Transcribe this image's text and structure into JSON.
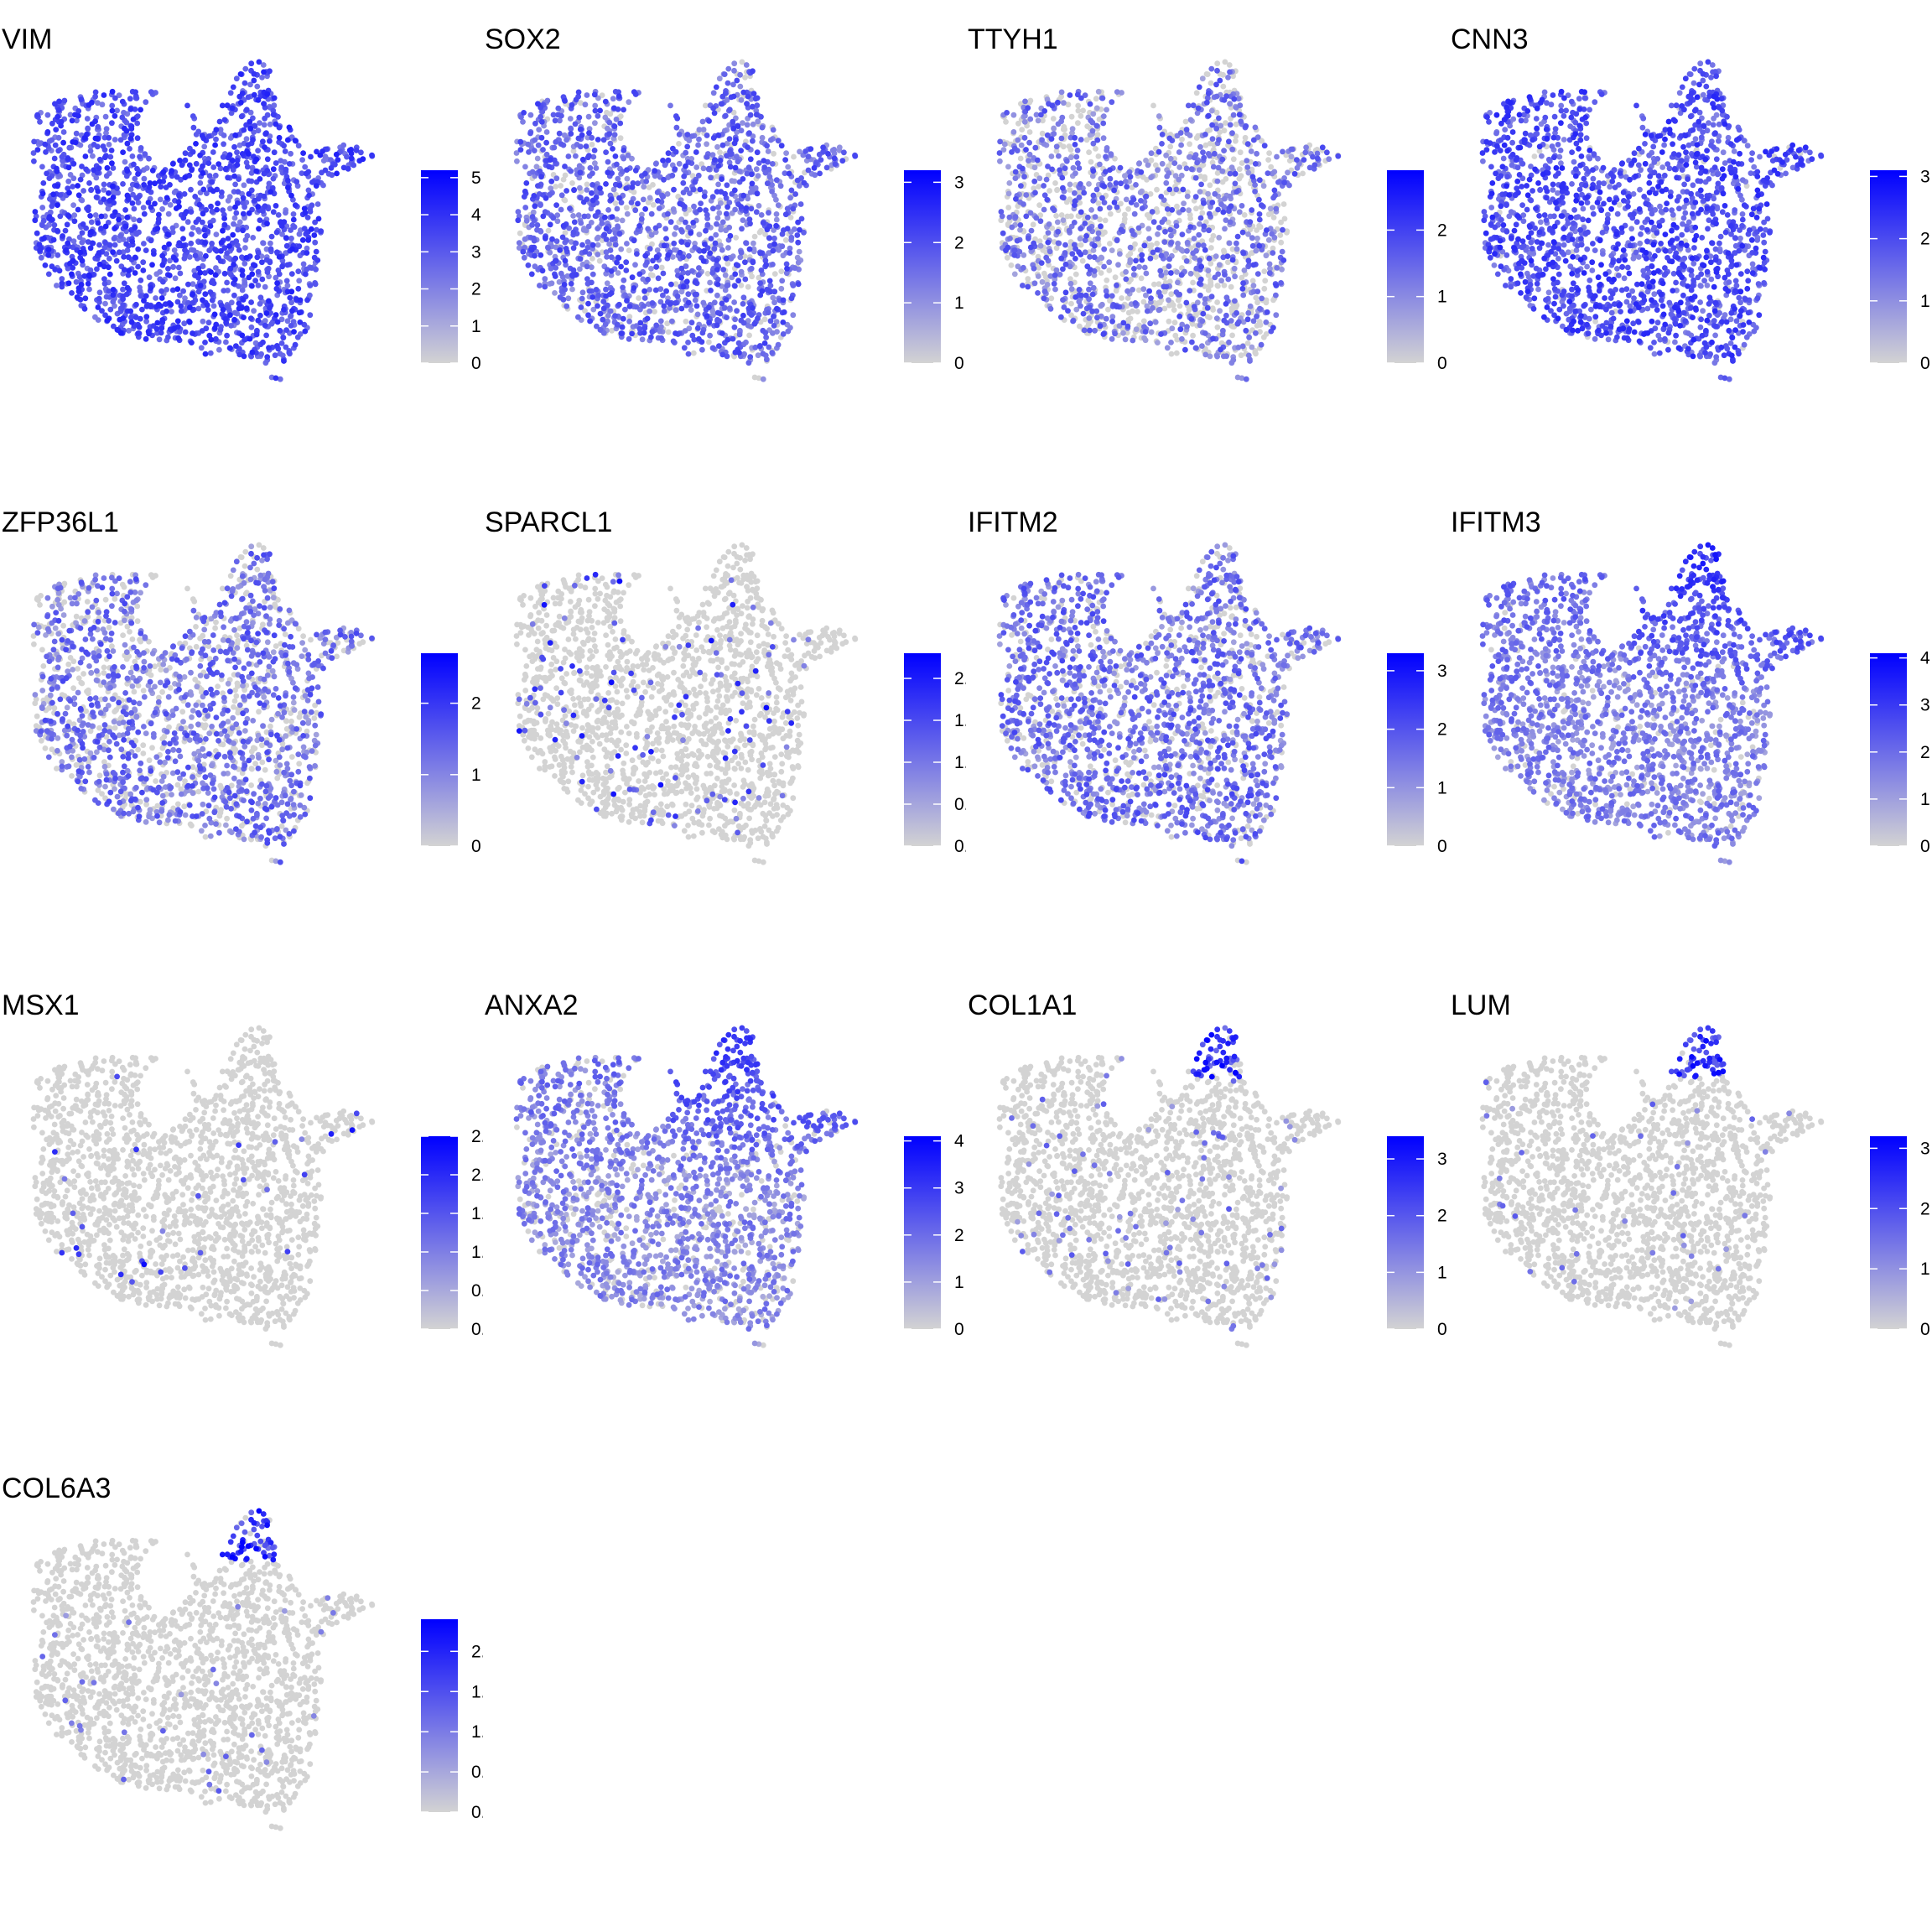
{
  "colors": {
    "low": "#d3d3d3",
    "high": "#0000ff"
  },
  "chart_data": [
    {
      "type": "scatter",
      "title": "VIM",
      "legend_max": 5.2,
      "ticks": [
        0,
        1,
        2,
        3,
        4,
        5
      ],
      "tick_labels": [
        "0",
        "1",
        "2",
        "3",
        "4",
        "5"
      ],
      "pattern": "broad",
      "expression_level": 0.62,
      "coverage": 1.0
    },
    {
      "type": "scatter",
      "title": "SOX2",
      "legend_max": 3.2,
      "ticks": [
        0,
        1,
        2,
        3
      ],
      "tick_labels": [
        "0",
        "1",
        "2",
        "3"
      ],
      "pattern": "broad",
      "expression_level": 0.5,
      "coverage": 0.85
    },
    {
      "type": "scatter",
      "title": "TTYH1",
      "legend_max": 2.9,
      "ticks": [
        0,
        1,
        2
      ],
      "tick_labels": [
        "0",
        "1",
        "2"
      ],
      "pattern": "broad",
      "expression_level": 0.45,
      "coverage": 0.55
    },
    {
      "type": "scatter",
      "title": "CNN3",
      "legend_max": 3.1,
      "ticks": [
        0,
        1,
        2,
        3
      ],
      "tick_labels": [
        "0",
        "1",
        "2",
        "3"
      ],
      "pattern": "broad",
      "expression_level": 0.6,
      "coverage": 0.95
    },
    {
      "type": "scatter",
      "title": "ZFP36L1",
      "legend_max": 2.7,
      "ticks": [
        0,
        1,
        2
      ],
      "tick_labels": [
        "0",
        "1",
        "2"
      ],
      "pattern": "broad",
      "expression_level": 0.45,
      "coverage": 0.65
    },
    {
      "type": "scatter",
      "title": "SPARCL1",
      "legend_max": 2.3,
      "ticks": [
        0,
        0.5,
        1,
        1.5,
        2
      ],
      "tick_labels": [
        "0.0",
        "0.5",
        "1.0",
        "1.5",
        "2.0"
      ],
      "pattern": "sparse",
      "expression_level": 0.6,
      "coverage": 0.06
    },
    {
      "type": "scatter",
      "title": "IFITM2",
      "legend_max": 3.3,
      "ticks": [
        0,
        1,
        2,
        3
      ],
      "tick_labels": [
        "0",
        "1",
        "2",
        "3"
      ],
      "pattern": "broad",
      "expression_level": 0.45,
      "coverage": 0.75
    },
    {
      "type": "scatter",
      "title": "IFITM3",
      "legend_max": 4.1,
      "ticks": [
        0,
        1,
        2,
        3,
        4
      ],
      "tick_labels": [
        "0",
        "1",
        "2",
        "3",
        "4"
      ],
      "pattern": "top",
      "expression_level": 0.55,
      "coverage": 0.9
    },
    {
      "type": "scatter",
      "title": "MSX1",
      "legend_max": 2.5,
      "ticks": [
        0,
        0.5,
        1,
        1.5,
        2,
        2.5
      ],
      "tick_labels": [
        "0.0",
        "0.5",
        "1.0",
        "1.5",
        "2.0",
        "2.5"
      ],
      "pattern": "sparse",
      "expression_level": 0.5,
      "coverage": 0.02
    },
    {
      "type": "scatter",
      "title": "ANXA2",
      "legend_max": 4.1,
      "ticks": [
        0,
        1,
        2,
        3,
        4
      ],
      "tick_labels": [
        "0",
        "1",
        "2",
        "3",
        "4"
      ],
      "pattern": "top",
      "expression_level": 0.5,
      "coverage": 0.8
    },
    {
      "type": "scatter",
      "title": "COL1A1",
      "legend_max": 3.4,
      "ticks": [
        0,
        1,
        2,
        3
      ],
      "tick_labels": [
        "0",
        "1",
        "2",
        "3"
      ],
      "pattern": "tip",
      "expression_level": 0.5,
      "coverage": 0.05
    },
    {
      "type": "scatter",
      "title": "LUM",
      "legend_max": 3.2,
      "ticks": [
        0,
        1,
        2,
        3
      ],
      "tick_labels": [
        "0",
        "1",
        "2",
        "3"
      ],
      "pattern": "tip",
      "expression_level": 0.5,
      "coverage": 0.02
    },
    {
      "type": "scatter",
      "title": "COL6A3",
      "legend_max": 2.4,
      "ticks": [
        0,
        0.5,
        1,
        1.5,
        2
      ],
      "tick_labels": [
        "0.0",
        "0.5",
        "1.0",
        "1.5",
        "2.0"
      ],
      "pattern": "tip",
      "expression_level": 0.5,
      "coverage": 0.02
    }
  ]
}
